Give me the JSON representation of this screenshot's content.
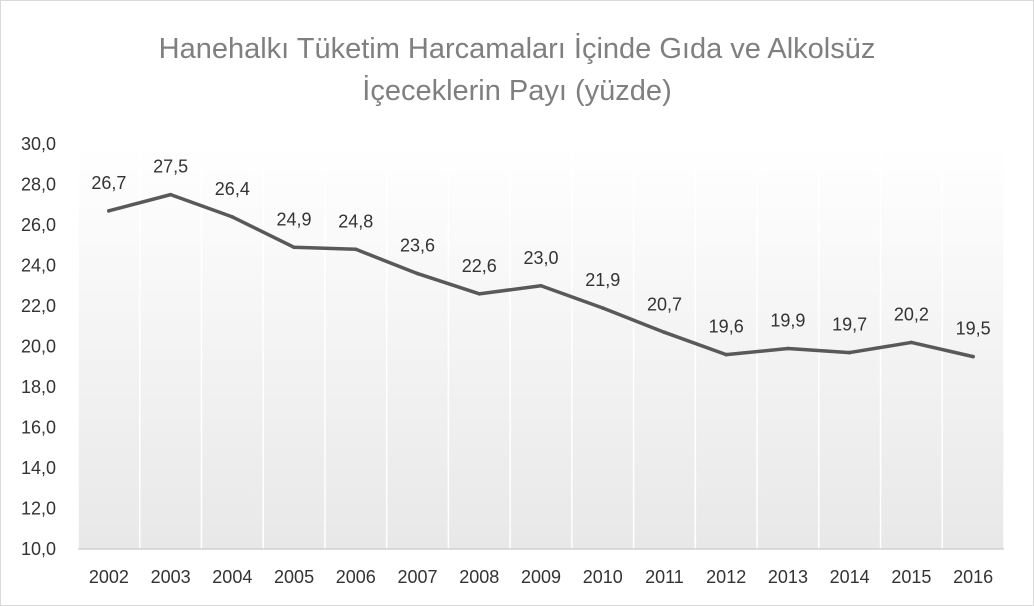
{
  "chart_data": {
    "type": "line",
    "title_lines": [
      "Hanehalkı Tüketim Harcamaları İçinde Gıda ve Alkolsüz",
      "İçeceklerin  Payı (yüzde)"
    ],
    "categories": [
      "2002",
      "2003",
      "2004",
      "2005",
      "2006",
      "2007",
      "2008",
      "2009",
      "2010",
      "2011",
      "2012",
      "2013",
      "2014",
      "2015",
      "2016"
    ],
    "series": [
      {
        "values": [
          26.7,
          27.5,
          26.4,
          24.9,
          24.8,
          23.6,
          22.6,
          23.0,
          21.9,
          20.7,
          19.6,
          19.9,
          19.7,
          20.2,
          19.5
        ],
        "labels": [
          "26,7",
          "27,5",
          "26,4",
          "24,9",
          "24,8",
          "23,6",
          "22,6",
          "23,0",
          "21,9",
          "20,7",
          "19,6",
          "19,9",
          "19,7",
          "20,2",
          "19,5"
        ],
        "color": "#595959"
      }
    ],
    "ylim": [
      10,
      30
    ],
    "yticks": [
      10,
      12,
      14,
      16,
      18,
      20,
      22,
      24,
      26,
      28,
      30
    ],
    "ytick_labels": [
      "10,0",
      "12,0",
      "14,0",
      "16,0",
      "18,0",
      "20,0",
      "22,0",
      "24,0",
      "26,0",
      "28,0",
      "30,0"
    ],
    "xlabel": "",
    "ylabel": "",
    "grid": "vertical",
    "area_fill_gradient": [
      "#ffffff",
      "#e8e8e8"
    ],
    "legend": "none"
  }
}
